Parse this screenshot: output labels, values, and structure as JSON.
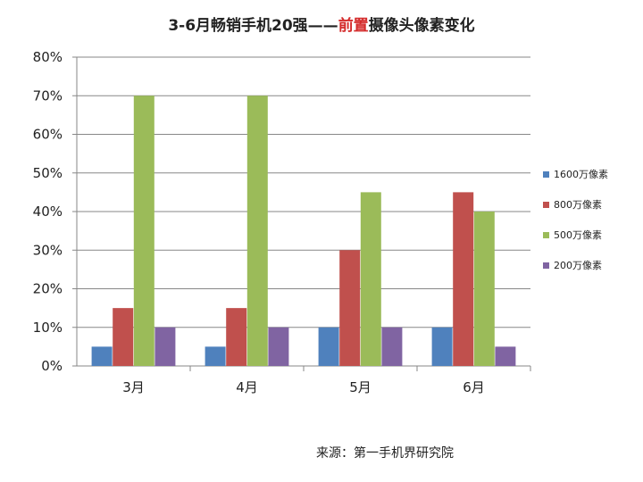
{
  "title": {
    "part1": "3-6月畅销手机20强——",
    "highlight": "前置",
    "part2": "摄像头像素变化"
  },
  "source": "来源：第一手机界研究院",
  "chart_data": {
    "type": "bar",
    "categories": [
      "3月",
      "4月",
      "5月",
      "6月"
    ],
    "series": [
      {
        "name": "1600万像素",
        "color": "#4f81bd",
        "values": [
          5,
          5,
          10,
          10
        ]
      },
      {
        "name": "800万像素",
        "color": "#c0504d",
        "values": [
          15,
          15,
          30,
          45
        ]
      },
      {
        "name": "500万像素",
        "color": "#9bbb59",
        "values": [
          70,
          70,
          45,
          40
        ]
      },
      {
        "name": "200万像素",
        "color": "#8064a2",
        "values": [
          10,
          10,
          10,
          5
        ]
      }
    ],
    "yticks": [
      "0%",
      "10%",
      "20%",
      "30%",
      "40%",
      "50%",
      "60%",
      "70%",
      "80%"
    ],
    "ylim": [
      0,
      80
    ],
    "grid": true,
    "legend": "right"
  }
}
